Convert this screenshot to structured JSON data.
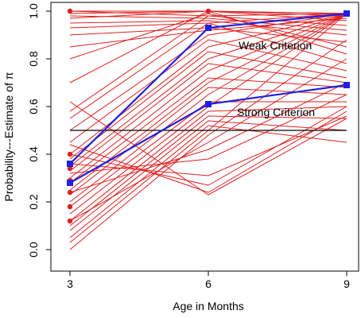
{
  "chart_data": {
    "type": "line",
    "xlabel": "Age in Months",
    "ylabel": "Probability---Estimate of π",
    "x": [
      3,
      6,
      9
    ],
    "x_ticks": [
      3,
      6,
      9
    ],
    "xlim": [
      3,
      9
    ],
    "y_ticks": [
      0.0,
      0.2,
      0.4,
      0.6,
      0.8,
      1.0
    ],
    "y_tick_labels": [
      "0.0",
      "0.2",
      "0.4",
      "0.6",
      "0.8",
      "1.0"
    ],
    "ylim": [
      0,
      1
    ],
    "grid": false,
    "reference_line": 0.5,
    "colors": {
      "individual": "#e02020",
      "mean": "#2020e0",
      "reference": "#000000"
    },
    "individual_series": [
      [
        1.0,
        1.0,
        0.96
      ],
      [
        1.0,
        0.98,
        0.94
      ],
      [
        0.98,
        0.97,
        0.92
      ],
      [
        0.95,
        0.96,
        0.9
      ],
      [
        0.93,
        0.95,
        0.99
      ],
      [
        0.9,
        0.93,
        0.87
      ],
      [
        0.85,
        0.92,
        0.97
      ],
      [
        0.8,
        0.99,
        0.85
      ],
      [
        0.7,
        1.0,
        0.82
      ],
      [
        0.58,
        0.98,
        0.99
      ],
      [
        0.55,
        0.95,
        0.78
      ],
      [
        0.5,
        0.9,
        0.99
      ],
      [
        0.45,
        0.88,
        0.75
      ],
      [
        0.4,
        0.85,
        0.99
      ],
      [
        0.38,
        0.83,
        0.72
      ],
      [
        0.35,
        0.8,
        0.99
      ],
      [
        0.33,
        0.78,
        0.7
      ],
      [
        0.3,
        0.75,
        0.99
      ],
      [
        0.28,
        0.72,
        0.68
      ],
      [
        0.25,
        0.7,
        0.99
      ],
      [
        0.23,
        0.68,
        0.65
      ],
      [
        0.2,
        0.65,
        0.99
      ],
      [
        0.18,
        0.62,
        0.62
      ],
      [
        0.15,
        0.6,
        0.99
      ],
      [
        0.12,
        0.58,
        0.6
      ],
      [
        0.1,
        0.56,
        0.55
      ],
      [
        0.08,
        0.54,
        0.5
      ],
      [
        0.05,
        0.52,
        0.45
      ],
      [
        0.03,
        0.5,
        0.99
      ],
      [
        0.0,
        0.48,
        0.88
      ],
      [
        0.12,
        0.45,
        0.8
      ],
      [
        0.24,
        0.42,
        0.7
      ],
      [
        0.32,
        0.38,
        0.65
      ],
      [
        0.36,
        0.31,
        0.56
      ],
      [
        0.4,
        0.27,
        0.6
      ],
      [
        0.44,
        0.24,
        0.58
      ],
      [
        0.62,
        0.23,
        0.55
      ],
      [
        0.97,
        1.0,
        0.98
      ],
      [
        0.99,
        1.0,
        0.99
      ],
      [
        1.0,
        1.0,
        0.99
      ]
    ],
    "highlighted_points_at_3": [
      1.0,
      0.4,
      0.34,
      0.29,
      0.24,
      0.18,
      0.12
    ],
    "series": [
      {
        "name": "Weak Criterion",
        "values": [
          0.36,
          0.93,
          0.99
        ]
      },
      {
        "name": "Strong Criterion",
        "values": [
          0.28,
          0.61,
          0.69
        ]
      }
    ]
  }
}
